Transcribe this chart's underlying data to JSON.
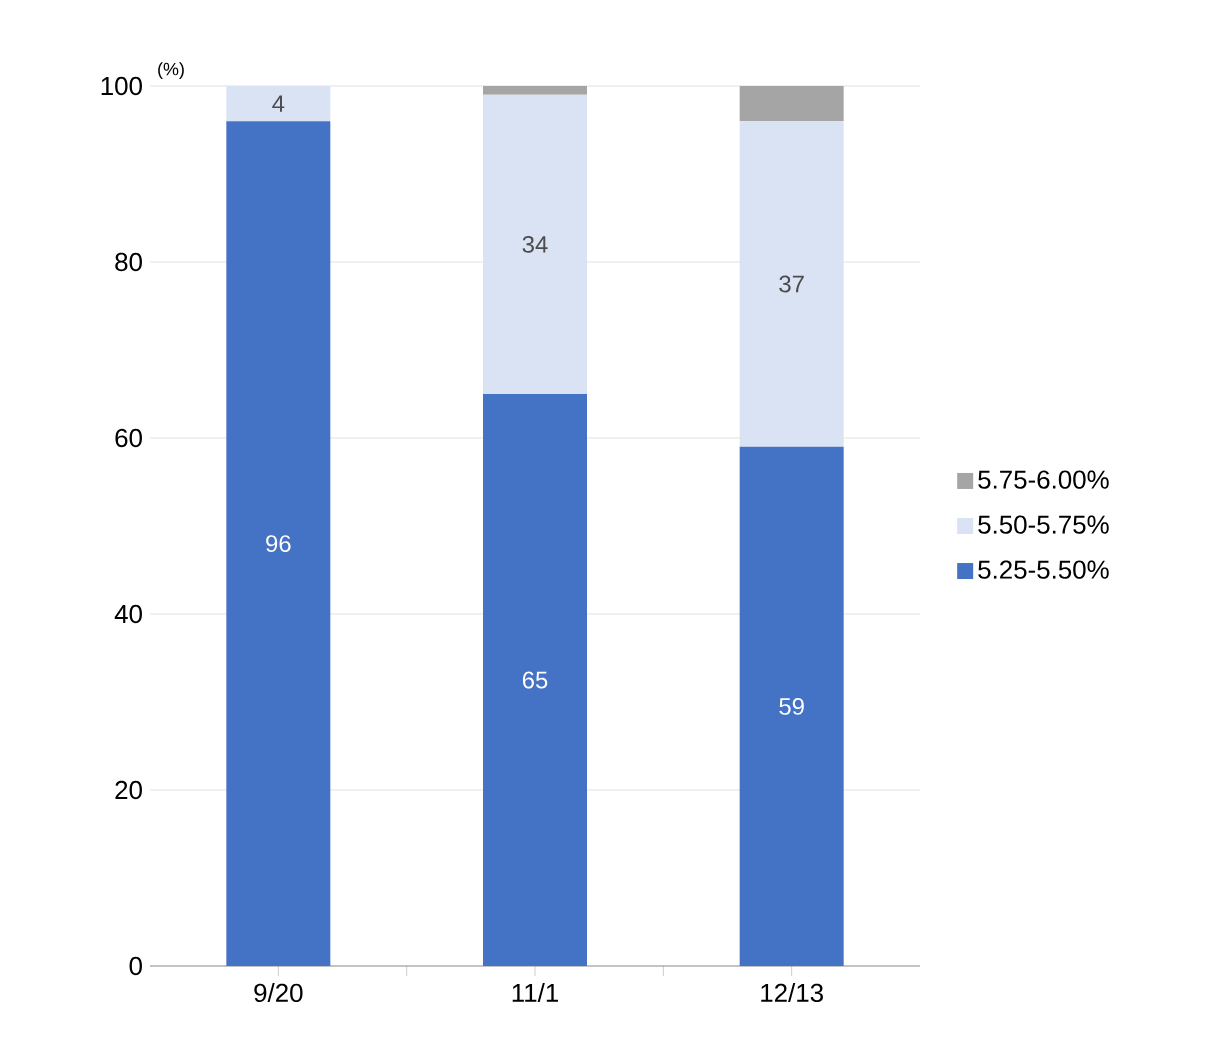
{
  "chart_data": {
    "type": "bar",
    "stacked": true,
    "ylabel": "(%)",
    "categories": [
      "9/20",
      "11/1",
      "12/13"
    ],
    "series": [
      {
        "name": "5.25-5.50%",
        "color": "#4472c4",
        "values": [
          96,
          65,
          59
        ],
        "value_labels": [
          "96",
          "65",
          "59"
        ]
      },
      {
        "name": "5.50-5.75%",
        "color": "#dae3f3",
        "values": [
          4,
          34,
          37
        ],
        "value_labels": [
          "4",
          "34",
          "37"
        ]
      },
      {
        "name": "5.75-6.00%",
        "color": "#a5a5a5",
        "values": [
          0,
          1,
          4
        ],
        "value_labels": [
          null,
          null,
          null
        ]
      }
    ],
    "ylim": [
      0,
      100
    ],
    "yticks": [
      0,
      20,
      40,
      60,
      80,
      100
    ],
    "grid": "y",
    "legend": "right"
  }
}
